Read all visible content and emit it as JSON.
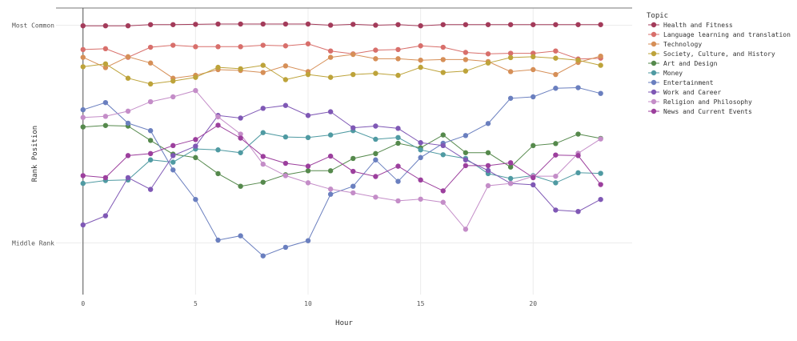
{
  "chart_data": {
    "type": "line",
    "xlabel": "Hour",
    "ylabel": "Rank Position",
    "x": [
      0,
      1,
      2,
      3,
      4,
      5,
      6,
      7,
      8,
      9,
      10,
      11,
      12,
      13,
      14,
      15,
      16,
      17,
      18,
      19,
      20,
      21,
      22,
      23
    ],
    "x_ticks": [
      0,
      5,
      10,
      15,
      20
    ],
    "xlim": [
      -1.2,
      24.4
    ],
    "ylim": [
      0,
      1
    ],
    "y_ticks": [
      {
        "value": 0.94,
        "label": "Most Common"
      },
      {
        "value": 0.18,
        "label": "Middle Rank"
      }
    ],
    "grid": true,
    "legend": {
      "title": "Topic",
      "position": "right"
    },
    "series": [
      {
        "name": "Health and Fitness",
        "color": "#a33b5a",
        "values": [
          0.938,
          0.938,
          0.938,
          0.942,
          0.942,
          0.943,
          0.944,
          0.944,
          0.944,
          0.944,
          0.944,
          0.94,
          0.943,
          0.94,
          0.942,
          0.938,
          0.942,
          0.942,
          0.942,
          0.942,
          0.942,
          0.942,
          0.942,
          0.942
        ]
      },
      {
        "name": "Language learning and translation",
        "color": "#d86f6b",
        "values": [
          0.855,
          0.858,
          0.828,
          0.863,
          0.87,
          0.865,
          0.865,
          0.865,
          0.87,
          0.868,
          0.875,
          0.85,
          0.84,
          0.853,
          0.855,
          0.868,
          0.863,
          0.845,
          0.84,
          0.842,
          0.842,
          0.85,
          0.822,
          0.825
        ]
      },
      {
        "name": "Technology",
        "color": "#d68f57",
        "values": [
          0.828,
          0.792,
          0.83,
          0.808,
          0.755,
          0.765,
          0.785,
          0.782,
          0.775,
          0.798,
          0.778,
          0.828,
          0.838,
          0.823,
          0.823,
          0.818,
          0.82,
          0.82,
          0.813,
          0.778,
          0.785,
          0.768,
          0.81,
          0.832
        ]
      },
      {
        "name": "Society, Culture, and History",
        "color": "#bda33a",
        "values": [
          0.795,
          0.805,
          0.755,
          0.735,
          0.745,
          0.758,
          0.793,
          0.788,
          0.8,
          0.75,
          0.768,
          0.758,
          0.768,
          0.772,
          0.765,
          0.793,
          0.775,
          0.78,
          0.808,
          0.827,
          0.83,
          0.825,
          0.818,
          0.8
        ]
      },
      {
        "name": "Art and Design",
        "color": "#55894c",
        "values": [
          0.585,
          0.59,
          0.588,
          0.538,
          0.49,
          0.478,
          0.422,
          0.378,
          0.392,
          0.418,
          0.432,
          0.432,
          0.475,
          0.492,
          0.528,
          0.512,
          0.557,
          0.495,
          0.495,
          0.445,
          0.52,
          0.527,
          0.56,
          0.545
        ]
      },
      {
        "name": "Money",
        "color": "#4f9aa2",
        "values": [
          0.388,
          0.398,
          0.4,
          0.47,
          0.462,
          0.508,
          0.505,
          0.495,
          0.565,
          0.55,
          0.548,
          0.557,
          0.572,
          0.542,
          0.548,
          0.505,
          0.488,
          0.475,
          0.422,
          0.405,
          0.415,
          0.39,
          0.425,
          0.423
        ]
      },
      {
        "name": "Entertainment",
        "color": "#6a7fbf",
        "values": [
          0.645,
          0.67,
          0.598,
          0.572,
          0.435,
          0.332,
          0.19,
          0.205,
          0.135,
          0.165,
          0.188,
          0.35,
          0.378,
          0.47,
          0.395,
          0.478,
          0.528,
          0.555,
          0.597,
          0.685,
          0.69,
          0.72,
          0.722,
          0.702
        ]
      },
      {
        "name": "Work and Career",
        "color": "#7f58b5",
        "values": [
          0.243,
          0.275,
          0.408,
          0.367,
          0.485,
          0.518,
          0.625,
          0.616,
          0.65,
          0.66,
          0.625,
          0.638,
          0.582,
          0.588,
          0.58,
          0.53,
          0.52,
          0.47,
          0.433,
          0.388,
          0.383,
          0.295,
          0.29,
          0.332
        ]
      },
      {
        "name": "Religion and Philosophy",
        "color": "#c48dc8",
        "values": [
          0.618,
          0.622,
          0.64,
          0.673,
          0.69,
          0.712,
          0.62,
          0.56,
          0.455,
          0.415,
          0.39,
          0.368,
          0.355,
          0.34,
          0.327,
          0.333,
          0.322,
          0.228,
          0.38,
          0.388,
          0.413,
          0.413,
          0.493,
          0.543
        ]
      },
      {
        "name": "News and Current Events",
        "color": "#9c3f9d",
        "values": [
          0.415,
          0.408,
          0.485,
          0.492,
          0.52,
          0.541,
          0.591,
          0.546,
          0.482,
          0.458,
          0.448,
          0.483,
          0.43,
          0.412,
          0.448,
          0.4,
          0.362,
          0.45,
          0.45,
          0.46,
          0.408,
          0.487,
          0.485,
          0.384
        ]
      }
    ]
  }
}
